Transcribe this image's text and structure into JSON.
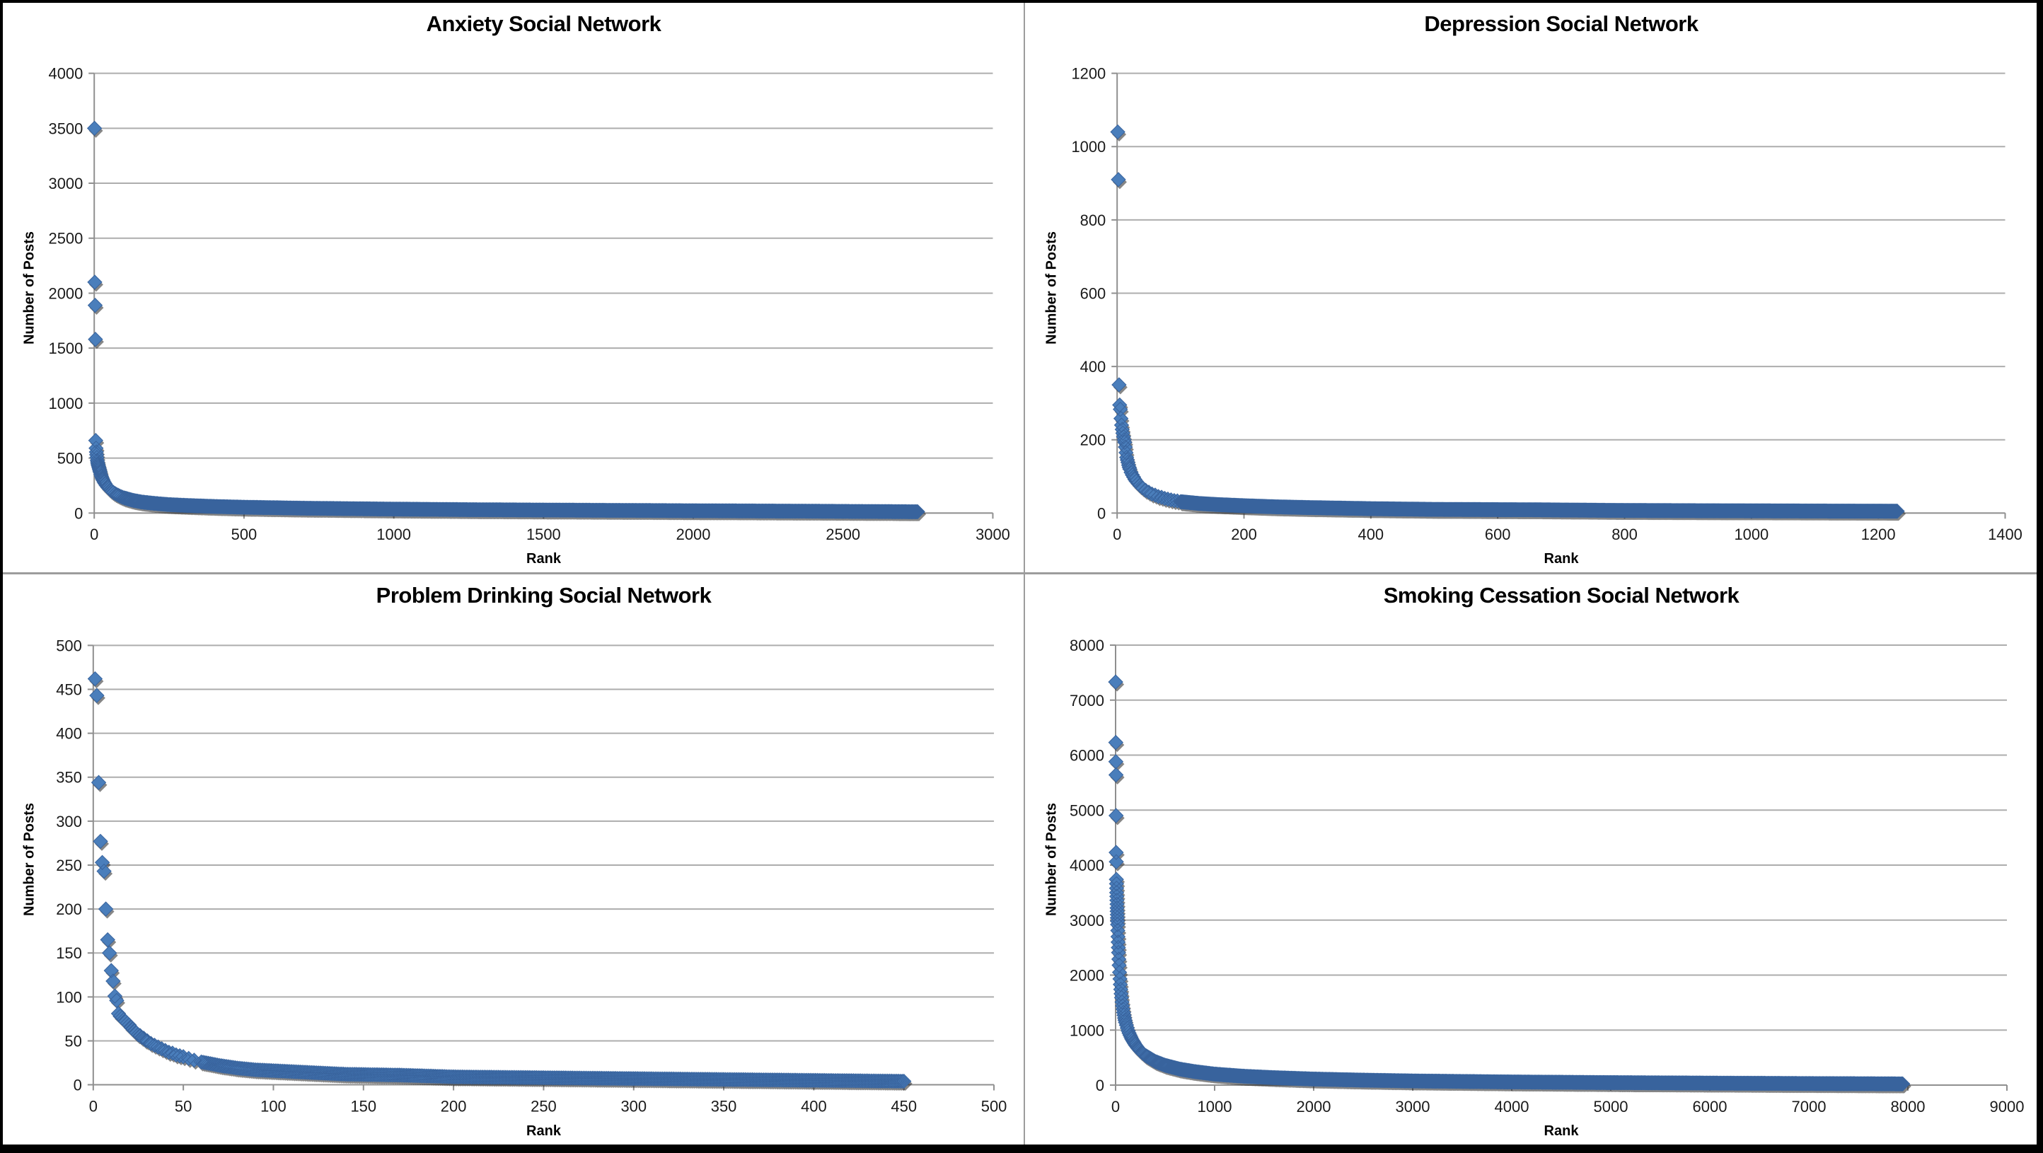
{
  "figure": {
    "layout": "2x2 grid of scatter charts",
    "background": "#FFFFFF",
    "outer_border_color": "#000000",
    "divider_color": "#9C9C9C"
  },
  "style": {
    "marker_fill": "#4A7EBB",
    "marker_stroke": "#38639D",
    "marker_shadow": "rgba(35,35,35,0.55)",
    "gridline": "#ADADAD",
    "axis_line": "#8F8F8F",
    "tick_text": "#1A1A1A",
    "title_text": "#000000"
  },
  "chart_data": [
    {
      "type": "scatter",
      "title": "Anxiety Social Network",
      "xlabel": "Rank",
      "ylabel": "Number of Posts",
      "xlim": [
        0,
        3000
      ],
      "xtick": 500,
      "ylim": [
        0,
        4000
      ],
      "ytick": 500,
      "grid": "horizontal",
      "legend": "none",
      "max_rank": 2750,
      "outliers": [
        [
          1,
          3500
        ],
        [
          2,
          2100
        ],
        [
          3,
          1890
        ],
        [
          4,
          1580
        ],
        [
          5,
          660
        ],
        [
          6,
          590
        ],
        [
          7,
          555
        ],
        [
          8,
          530
        ],
        [
          9,
          505
        ],
        [
          10,
          480
        ],
        [
          11,
          465
        ],
        [
          12,
          450
        ],
        [
          13,
          440
        ],
        [
          14,
          430
        ],
        [
          15,
          420
        ],
        [
          16,
          410
        ],
        [
          17,
          400
        ],
        [
          18,
          390
        ],
        [
          19,
          380
        ],
        [
          20,
          370
        ],
        [
          22,
          350
        ],
        [
          24,
          335
        ],
        [
          26,
          320
        ],
        [
          28,
          308
        ],
        [
          30,
          297
        ],
        [
          33,
          282
        ],
        [
          36,
          268
        ],
        [
          40,
          252
        ],
        [
          45,
          235
        ],
        [
          50,
          220
        ],
        [
          55,
          207
        ],
        [
          60,
          196
        ],
        [
          65,
          186
        ],
        [
          70,
          177
        ],
        [
          75,
          169
        ],
        [
          80,
          162
        ],
        [
          85,
          155
        ],
        [
          90,
          149
        ],
        [
          95,
          143
        ],
        [
          100,
          138
        ]
      ],
      "tail_curve": [
        [
          100,
          138
        ],
        [
          130,
          115
        ],
        [
          160,
          100
        ],
        [
          200,
          88
        ],
        [
          250,
          77
        ],
        [
          300,
          70
        ],
        [
          400,
          60
        ],
        [
          500,
          53
        ],
        [
          700,
          44
        ],
        [
          1000,
          36
        ],
        [
          1300,
          30
        ],
        [
          1600,
          26
        ],
        [
          2000,
          21
        ],
        [
          2300,
          18
        ],
        [
          2600,
          14
        ],
        [
          2750,
          12
        ]
      ]
    },
    {
      "type": "scatter",
      "title": "Depression Social Network",
      "xlabel": "Rank",
      "ylabel": "Number of Posts",
      "xlim": [
        0,
        1400
      ],
      "xtick": 200,
      "ylim": [
        0,
        1200
      ],
      "ytick": 200,
      "grid": "horizontal",
      "legend": "none",
      "max_rank": 1230,
      "outliers": [
        [
          1,
          1040
        ],
        [
          2,
          910
        ],
        [
          3,
          350
        ],
        [
          4,
          295
        ],
        [
          5,
          283
        ],
        [
          6,
          258
        ],
        [
          7,
          240
        ],
        [
          8,
          228
        ],
        [
          9,
          218
        ],
        [
          10,
          208
        ],
        [
          11,
          200
        ],
        [
          12,
          193
        ],
        [
          13,
          180
        ],
        [
          14,
          165
        ],
        [
          15,
          152
        ],
        [
          16,
          145
        ],
        [
          17,
          138
        ],
        [
          18,
          131
        ],
        [
          19,
          125
        ],
        [
          20,
          120
        ],
        [
          22,
          111
        ],
        [
          24,
          104
        ],
        [
          26,
          98
        ],
        [
          28,
          92
        ],
        [
          30,
          87
        ],
        [
          33,
          81
        ],
        [
          36,
          75
        ],
        [
          40,
          69
        ],
        [
          45,
          62
        ],
        [
          50,
          57
        ],
        [
          55,
          52
        ],
        [
          60,
          49
        ],
        [
          65,
          45
        ],
        [
          70,
          43
        ],
        [
          75,
          40
        ],
        [
          80,
          38
        ],
        [
          85,
          36
        ],
        [
          90,
          34
        ],
        [
          95,
          33
        ],
        [
          100,
          31
        ]
      ],
      "tail_curve": [
        [
          100,
          31
        ],
        [
          130,
          26
        ],
        [
          160,
          23
        ],
        [
          200,
          20
        ],
        [
          250,
          17
        ],
        [
          300,
          15
        ],
        [
          400,
          12
        ],
        [
          500,
          10
        ],
        [
          650,
          9
        ],
        [
          800,
          7
        ],
        [
          1000,
          6
        ],
        [
          1230,
          5
        ]
      ]
    },
    {
      "type": "scatter",
      "title": "Problem Drinking Social Network",
      "xlabel": "Rank",
      "ylabel": "Number of Posts",
      "xlim": [
        0,
        500
      ],
      "xtick": 50,
      "ylim": [
        0,
        500
      ],
      "ytick": 50,
      "grid": "horizontal",
      "legend": "none",
      "max_rank": 450,
      "outliers": [
        [
          1,
          462
        ],
        [
          2,
          443
        ],
        [
          3,
          344
        ],
        [
          4,
          277
        ],
        [
          5,
          253
        ],
        [
          6,
          243
        ],
        [
          7,
          200
        ],
        [
          8,
          165
        ],
        [
          9,
          150
        ],
        [
          10,
          130
        ],
        [
          11,
          118
        ],
        [
          12,
          101
        ],
        [
          13,
          96
        ],
        [
          14,
          81
        ],
        [
          15,
          78
        ],
        [
          16,
          76
        ],
        [
          17,
          74
        ],
        [
          18,
          72
        ],
        [
          19,
          70
        ],
        [
          20,
          68
        ],
        [
          21,
          65
        ],
        [
          22,
          63
        ],
        [
          23,
          61
        ],
        [
          24,
          59
        ],
        [
          25,
          57
        ],
        [
          26,
          56
        ],
        [
          27,
          54
        ],
        [
          28,
          53
        ],
        [
          29,
          51
        ],
        [
          30,
          50
        ],
        [
          32,
          47
        ],
        [
          34,
          45
        ],
        [
          36,
          43
        ],
        [
          38,
          41
        ],
        [
          40,
          39
        ],
        [
          42,
          37
        ],
        [
          44,
          36
        ],
        [
          46,
          34
        ],
        [
          48,
          33
        ],
        [
          50,
          32
        ],
        [
          53,
          30
        ],
        [
          56,
          28
        ],
        [
          60,
          26
        ]
      ],
      "tail_curve": [
        [
          60,
          26
        ],
        [
          70,
          22
        ],
        [
          80,
          19
        ],
        [
          90,
          17
        ],
        [
          100,
          16
        ],
        [
          120,
          14
        ],
        [
          140,
          12
        ],
        [
          170,
          11
        ],
        [
          200,
          9
        ],
        [
          250,
          8
        ],
        [
          300,
          7
        ],
        [
          350,
          6
        ],
        [
          400,
          5
        ],
        [
          450,
          4
        ]
      ]
    },
    {
      "type": "scatter",
      "title": "Smoking Cessation Social Network",
      "xlabel": "Rank",
      "ylabel": "Number of Posts",
      "xlim": [
        0,
        9000
      ],
      "xtick": 1000,
      "ylim": [
        0,
        8000
      ],
      "ytick": 1000,
      "grid": "horizontal",
      "legend": "none",
      "max_rank": 7950,
      "outliers": [
        [
          1,
          7330
        ],
        [
          2,
          6230
        ],
        [
          3,
          5880
        ],
        [
          4,
          5640
        ],
        [
          5,
          4900
        ],
        [
          6,
          4230
        ],
        [
          7,
          4060
        ],
        [
          8,
          3740
        ],
        [
          9,
          3660
        ],
        [
          10,
          3580
        ],
        [
          11,
          3500
        ],
        [
          12,
          3430
        ],
        [
          13,
          3360
        ],
        [
          14,
          3290
        ],
        [
          15,
          3220
        ],
        [
          16,
          3160
        ],
        [
          17,
          3100
        ],
        [
          18,
          3040
        ],
        [
          19,
          2980
        ],
        [
          20,
          2920
        ],
        [
          22,
          2810
        ],
        [
          24,
          2700
        ],
        [
          26,
          2600
        ],
        [
          28,
          2500
        ],
        [
          30,
          2410
        ],
        [
          33,
          2290
        ],
        [
          36,
          2180
        ],
        [
          40,
          2050
        ],
        [
          44,
          1930
        ],
        [
          48,
          1830
        ],
        [
          52,
          1740
        ],
        [
          56,
          1660
        ],
        [
          60,
          1590
        ],
        [
          65,
          1510
        ],
        [
          70,
          1440
        ],
        [
          75,
          1380
        ],
        [
          80,
          1320
        ],
        [
          85,
          1270
        ],
        [
          90,
          1220
        ],
        [
          95,
          1180
        ],
        [
          100,
          1140
        ]
      ],
      "tail_curve": [
        [
          100,
          1140
        ],
        [
          130,
          970
        ],
        [
          160,
          850
        ],
        [
          200,
          730
        ],
        [
          250,
          620
        ],
        [
          300,
          540
        ],
        [
          400,
          430
        ],
        [
          500,
          360
        ],
        [
          650,
          290
        ],
        [
          800,
          245
        ],
        [
          1000,
          200
        ],
        [
          1300,
          160
        ],
        [
          1600,
          135
        ],
        [
          2000,
          110
        ],
        [
          2500,
          90
        ],
        [
          3000,
          75
        ],
        [
          4000,
          57
        ],
        [
          5000,
          45
        ],
        [
          6000,
          36
        ],
        [
          7000,
          28
        ],
        [
          7950,
          22
        ]
      ]
    }
  ]
}
